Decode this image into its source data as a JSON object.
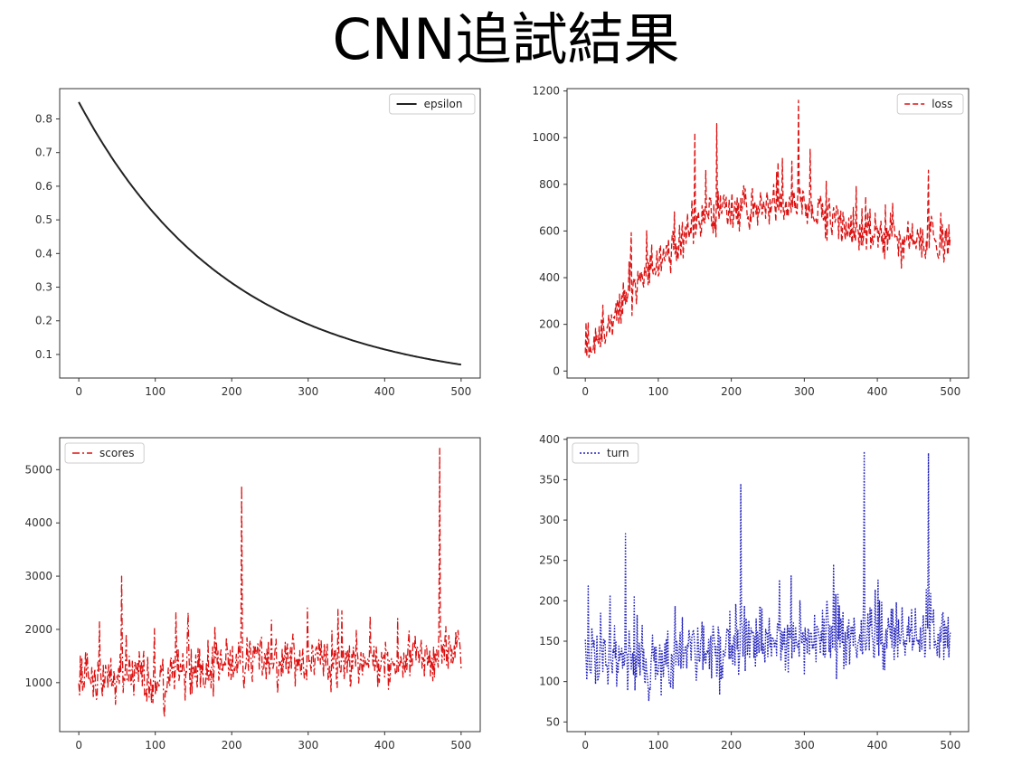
{
  "title": "CNN追試結果",
  "chart_data": [
    {
      "type": "line",
      "x_range": [
        0,
        500
      ],
      "xlim": [
        -25,
        525
      ],
      "ylim": [
        0.03,
        0.89
      ],
      "xticks": [
        0,
        100,
        200,
        300,
        400,
        500
      ],
      "yticks": [
        0.1,
        0.2,
        0.3,
        0.4,
        0.5,
        0.6,
        0.7,
        0.8
      ],
      "legend_position": "top-right",
      "series": [
        {
          "name": "epsilon",
          "color": "#222222",
          "style": "solid",
          "formula": "0.85 * exp(-0.005 * x)",
          "samples": {
            "x": [
              0,
              100,
              200,
              300,
              400,
              500
            ],
            "y": [
              0.85,
              0.516,
              0.313,
              0.19,
              0.115,
              0.07
            ]
          }
        }
      ],
      "grid": false
    },
    {
      "type": "line",
      "x_range": [
        0,
        500
      ],
      "xlim": [
        -25,
        525
      ],
      "ylim": [
        -30,
        1210
      ],
      "xticks": [
        0,
        100,
        200,
        300,
        400,
        500
      ],
      "yticks": [
        0,
        200,
        400,
        600,
        800,
        1000,
        1200
      ],
      "legend_position": "top-right",
      "series": [
        {
          "name": "loss",
          "color": "#dd1111",
          "style": "dashed",
          "trend": {
            "x": [
              0,
              20,
              50,
              100,
              150,
              200,
              250,
              300,
              350,
              400,
              450,
              500
            ],
            "y": [
              80,
              150,
              320,
              480,
              620,
              680,
              700,
              720,
              620,
              600,
              560,
              560
            ]
          },
          "noise_amplitude": 110,
          "peaks": [
            {
              "x": 180,
              "y": 1060
            },
            {
              "x": 292,
              "y": 1160
            },
            {
              "x": 150,
              "y": 1020
            },
            {
              "x": 470,
              "y": 860
            }
          ]
        }
      ],
      "grid": false
    },
    {
      "type": "line",
      "x_range": [
        0,
        500
      ],
      "xlim": [
        -25,
        525
      ],
      "ylim": [
        80,
        5600
      ],
      "xticks": [
        0,
        100,
        200,
        300,
        400,
        500
      ],
      "yticks": [
        1000,
        2000,
        3000,
        4000,
        5000
      ],
      "legend_position": "top-left",
      "series": [
        {
          "name": "scores",
          "color": "#dd1111",
          "style": "dashdot",
          "trend": {
            "x": [
              0,
              100,
              200,
              300,
              400,
              500
            ],
            "y": [
              1100,
              1100,
              1400,
              1400,
              1400,
              1600
            ]
          },
          "noise_amplitude": 550,
          "peaks": [
            {
              "x": 213,
              "y": 4700
            },
            {
              "x": 472,
              "y": 5400
            },
            {
              "x": 56,
              "y": 3000
            }
          ]
        }
      ],
      "grid": false
    },
    {
      "type": "line",
      "x_range": [
        0,
        500
      ],
      "xlim": [
        -25,
        525
      ],
      "ylim": [
        38,
        402
      ],
      "xticks": [
        0,
        100,
        200,
        300,
        400,
        500
      ],
      "yticks": [
        50,
        100,
        150,
        200,
        250,
        300,
        350,
        400
      ],
      "legend_position": "top-left",
      "series": [
        {
          "name": "turn",
          "color": "#2222bb",
          "style": "dotted",
          "trend": {
            "x": [
              0,
              100,
              200,
              300,
              400,
              500
            ],
            "y": [
              130,
              125,
              150,
              150,
              155,
              165
            ]
          },
          "noise_amplitude": 45,
          "peaks": [
            {
              "x": 382,
              "y": 385
            },
            {
              "x": 470,
              "y": 383
            },
            {
              "x": 213,
              "y": 345
            },
            {
              "x": 55,
              "y": 283
            }
          ]
        }
      ],
      "grid": false
    }
  ]
}
